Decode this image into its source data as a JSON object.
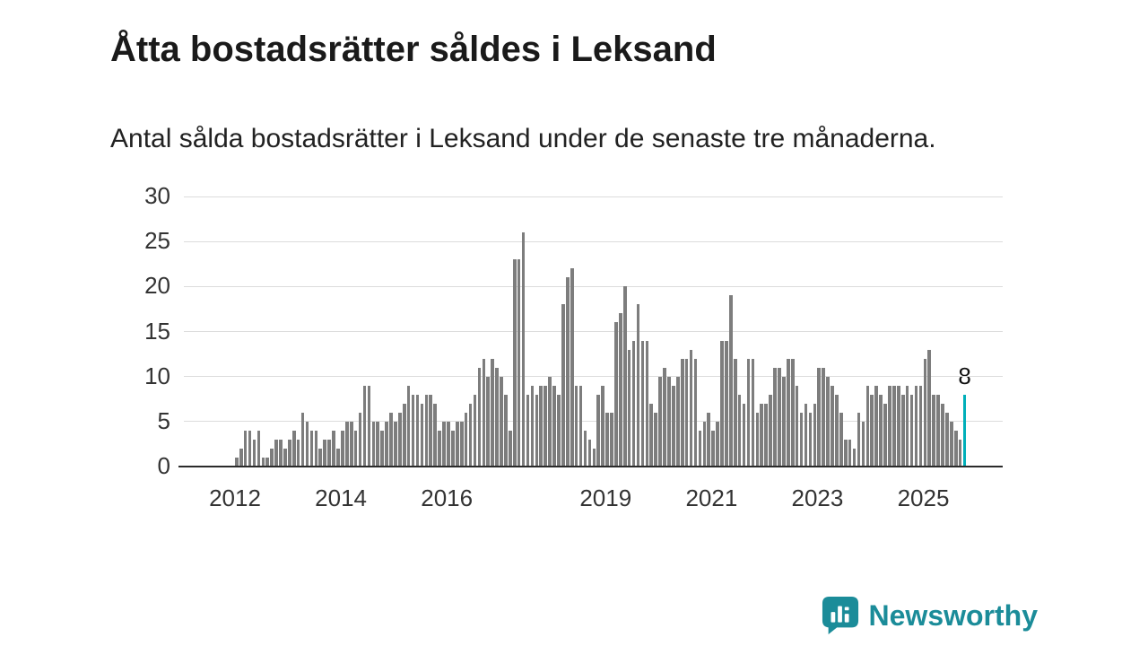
{
  "title": "Åtta bostadsrätter såldes i Leksand",
  "subtitle": "Antal sålda bostadsrätter i Leksand under de senaste tre månaderna.",
  "annotation": {
    "last_value_label": "8"
  },
  "logo": {
    "text": "Newsworthy"
  },
  "colors": {
    "bar": "#7d7d7d",
    "highlight": "#00afb9",
    "accent": "#1b8c99",
    "axis": "#2b2b2b",
    "grid": "#dcdcdc"
  },
  "chart_data": {
    "type": "bar",
    "title": "Åtta bostadsrätter såldes i Leksand",
    "subtitle": "Antal sålda bostadsrätter i Leksand under de senaste tre månaderna.",
    "xlabel": "",
    "ylabel": "",
    "ylim": [
      0,
      30
    ],
    "yticks": [
      0,
      5,
      10,
      15,
      20,
      25,
      30
    ],
    "grid": "horizontal",
    "legend": "none",
    "x_start": "2012-01",
    "x_end": "2025-10",
    "x_ticks": [
      {
        "year": 2012,
        "label": "2012"
      },
      {
        "year": 2014,
        "label": "2014"
      },
      {
        "year": 2016,
        "label": "2016"
      },
      {
        "year": 2019,
        "label": "2019"
      },
      {
        "year": 2021,
        "label": "2021"
      },
      {
        "year": 2023,
        "label": "2023"
      },
      {
        "year": 2025,
        "label": "2025"
      }
    ],
    "values": [
      1,
      2,
      4,
      4,
      3,
      4,
      1,
      1,
      2,
      3,
      3,
      2,
      3,
      4,
      3,
      6,
      5,
      4,
      4,
      2,
      3,
      3,
      4,
      2,
      4,
      5,
      5,
      4,
      6,
      9,
      9,
      5,
      5,
      4,
      5,
      6,
      5,
      6,
      7,
      9,
      8,
      8,
      7,
      8,
      8,
      7,
      4,
      5,
      5,
      4,
      5,
      5,
      6,
      7,
      8,
      11,
      12,
      10,
      12,
      11,
      10,
      8,
      4,
      23,
      23,
      26,
      8,
      9,
      8,
      9,
      9,
      10,
      9,
      8,
      18,
      21,
      22,
      9,
      9,
      4,
      3,
      2,
      8,
      9,
      6,
      6,
      16,
      17,
      20,
      13,
      14,
      18,
      14,
      14,
      7,
      6,
      10,
      11,
      10,
      9,
      10,
      12,
      12,
      13,
      12,
      4,
      5,
      6,
      4,
      5,
      14,
      14,
      19,
      12,
      8,
      7,
      12,
      12,
      6,
      7,
      7,
      8,
      11,
      11,
      10,
      12,
      12,
      9,
      6,
      7,
      6,
      7,
      11,
      11,
      10,
      9,
      8,
      6,
      3,
      3,
      2,
      6,
      5,
      9,
      8,
      9,
      8,
      7,
      9,
      9,
      9,
      8,
      9,
      8,
      9,
      9,
      12,
      13,
      8,
      8,
      7,
      6,
      5,
      4,
      3,
      8
    ],
    "highlight_last": true,
    "last_value": 8
  }
}
